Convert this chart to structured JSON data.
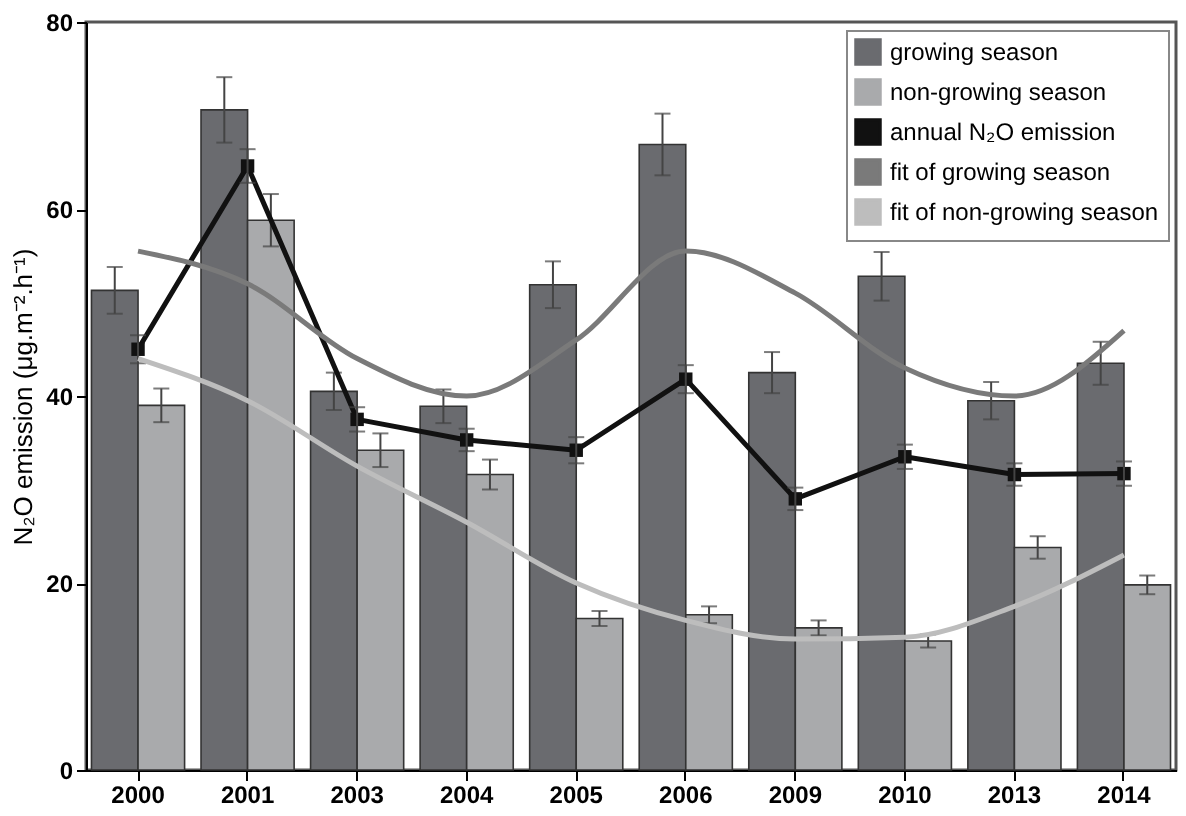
{
  "chart_data": {
    "type": "bar",
    "ylabel": "N₂O emission (μg.m⁻².h⁻¹)",
    "categories": [
      "2000",
      "2001",
      "2003",
      "2004",
      "2005",
      "2006",
      "2009",
      "2010",
      "2013",
      "2014"
    ],
    "ylim": [
      0,
      80
    ],
    "yticks": [
      0,
      20,
      40,
      60,
      80
    ],
    "grid": false,
    "legend": "top right",
    "series": [
      {
        "name": "growing season",
        "color": "#6a6b6f",
        "values": [
          51.3,
          70.6,
          40.5,
          38.9,
          51.9,
          66.9,
          42.5,
          52.8,
          39.5,
          43.5
        ],
        "errors": [
          2.5,
          3.5,
          2,
          1.8,
          2.5,
          3.3,
          2.2,
          2.6,
          2,
          2.3
        ]
      },
      {
        "name": "non-growing season",
        "color": "#a9aaac",
        "values": [
          39,
          58.8,
          34.2,
          31.6,
          16.2,
          16.6,
          15.2,
          13.8,
          23.8,
          19.8
        ],
        "errors": [
          1.8,
          2.8,
          1.8,
          1.6,
          0.8,
          0.9,
          0.8,
          0.7,
          1.2,
          1
        ]
      },
      {
        "name": "annual N₂O emission",
        "type": "line",
        "marker": "square",
        "color": "#111111",
        "values": [
          45,
          64.6,
          37.5,
          35.3,
          34.2,
          41.8,
          29,
          33.5,
          31.6,
          31.7
        ],
        "errors": [
          1.5,
          1.8,
          1.3,
          1.2,
          1.4,
          1.5,
          1.2,
          1.3,
          1.2,
          1.3
        ]
      },
      {
        "name": "fit of growing season",
        "type": "line",
        "color": "#7a7a7a",
        "values": [
          55.5,
          52,
          44,
          40,
          46,
          55.5,
          51,
          43,
          40,
          47
        ]
      },
      {
        "name": "fit of non-growing season",
        "type": "line",
        "color": "#bdbdbd",
        "values": [
          44,
          39.5,
          32.5,
          26.5,
          20,
          16,
          14,
          14.2,
          17.5,
          23
        ]
      }
    ]
  }
}
